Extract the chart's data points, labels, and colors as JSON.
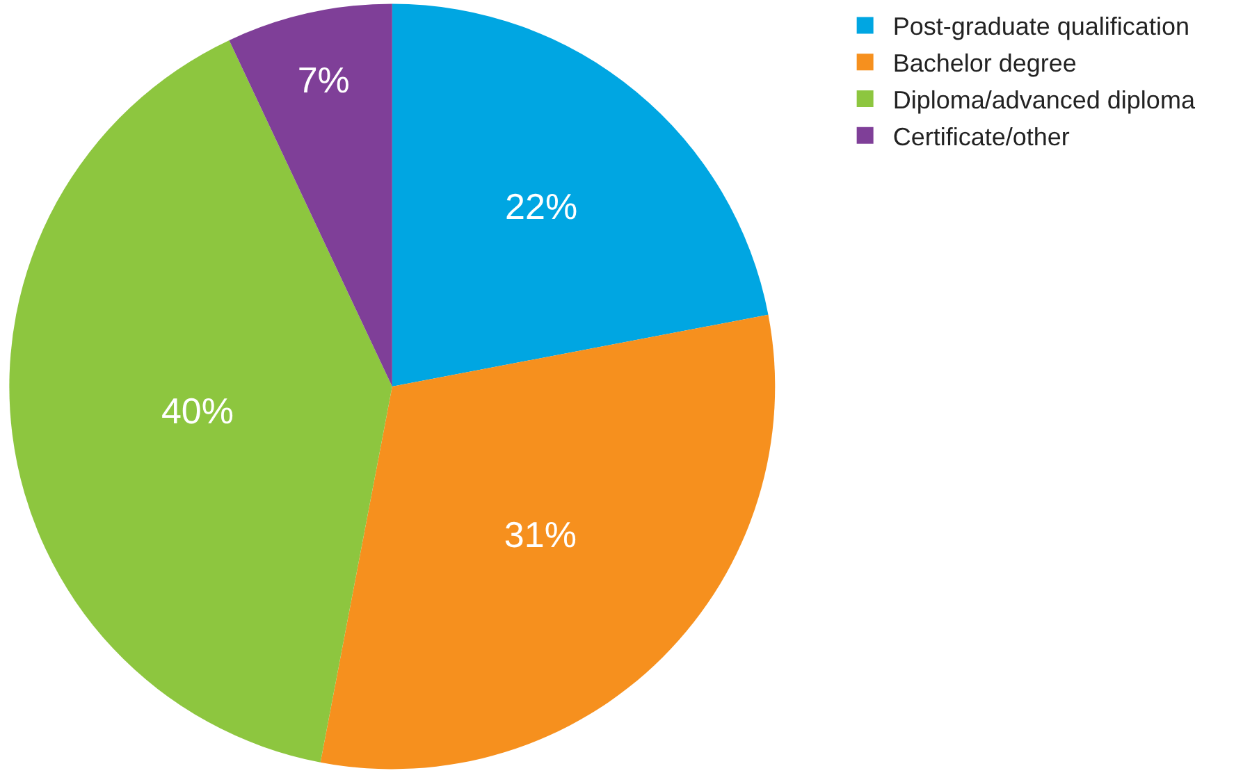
{
  "chart_data": {
    "type": "pie",
    "categories": [
      "Post-graduate qualification",
      "Bachelor degree",
      "Diploma/advanced diploma",
      "Certificate/other"
    ],
    "values": [
      22,
      31,
      40,
      7
    ],
    "value_labels": [
      "22%",
      "31%",
      "40%",
      "7%"
    ],
    "colors": [
      "#00a6e2",
      "#f6901e",
      "#8dc63f",
      "#7f3f98"
    ],
    "legend": "top right"
  }
}
